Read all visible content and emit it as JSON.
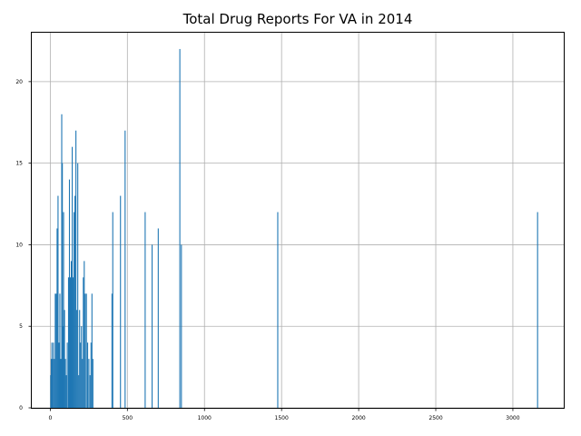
{
  "chart_data": {
    "type": "bar",
    "title": "Total Drug Reports For VA in 2014",
    "xlabel": "",
    "ylabel": "",
    "xlim": [
      -120,
      3330
    ],
    "ylim": [
      0,
      23
    ],
    "grid": true,
    "bar_color": "#1f77b4",
    "x_ticks": [
      0,
      500,
      1000,
      1500,
      2000,
      2500,
      3000
    ],
    "y_ticks": [
      0,
      5,
      10,
      15,
      20
    ],
    "x": [
      3,
      6,
      10,
      14,
      20,
      26,
      32,
      38,
      44,
      50,
      56,
      62,
      68,
      74,
      78,
      82,
      86,
      92,
      98,
      104,
      110,
      118,
      124,
      130,
      136,
      142,
      148,
      154,
      160,
      166,
      172,
      178,
      184,
      190,
      196,
      202,
      208,
      214,
      220,
      226,
      234,
      242,
      250,
      258,
      264,
      270,
      276,
      400,
      405,
      455,
      485,
      615,
      660,
      700,
      840,
      850,
      1475,
      3160
    ],
    "values": [
      2,
      3,
      4,
      3,
      4,
      3,
      7,
      7,
      11,
      13,
      4,
      7,
      3,
      18,
      15,
      5,
      12,
      6,
      3,
      2,
      4,
      8,
      14,
      8,
      9,
      16,
      8,
      12,
      13,
      17,
      6,
      15,
      2,
      6,
      4,
      5,
      3,
      8,
      9,
      7,
      7,
      4,
      3,
      2,
      4,
      7,
      3,
      7,
      12,
      13,
      17,
      12,
      10,
      11,
      22,
      10,
      12,
      12
    ]
  }
}
